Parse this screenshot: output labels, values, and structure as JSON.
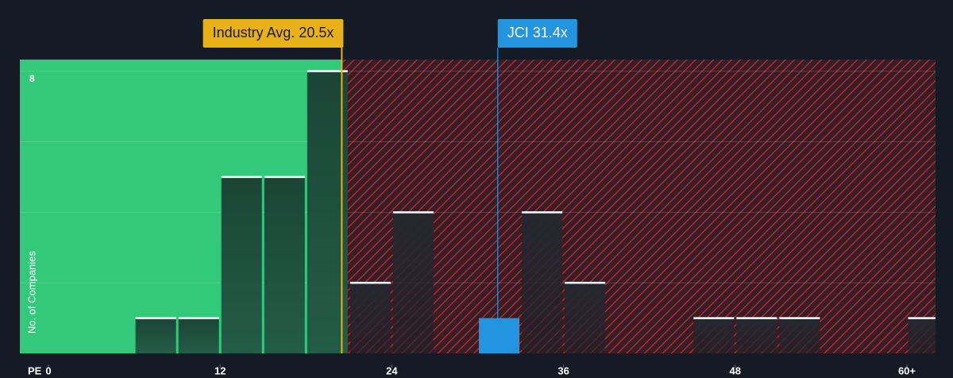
{
  "chart_data": {
    "type": "histogram",
    "xlabel": "PE",
    "ylabel": "No. of Companies",
    "bins": [
      0,
      3,
      6,
      9,
      12,
      15,
      18,
      21,
      24,
      27,
      30,
      33,
      36,
      39,
      42,
      45,
      48,
      51,
      54,
      57,
      60,
      63
    ],
    "counts": [
      0,
      0,
      1,
      1,
      5,
      5,
      8,
      2,
      4,
      0,
      1,
      4,
      2,
      0,
      0,
      1,
      1,
      1,
      0,
      0,
      1
    ],
    "xlim": [
      -2,
      62
    ],
    "ylim": [
      0,
      8.33
    ],
    "xticks": [
      0,
      12,
      24,
      36,
      48,
      {
        "value": 60,
        "label": "60+"
      }
    ],
    "yticks": [
      8
    ],
    "ygrid": [
      2,
      4,
      6
    ],
    "annotations": [
      {
        "label": "Industry Avg. 20.5x",
        "value": 20.5,
        "color": "#e8b118"
      },
      {
        "label": "JCI 31.4x",
        "value": 31.4,
        "color": "#2394e0"
      }
    ]
  }
}
